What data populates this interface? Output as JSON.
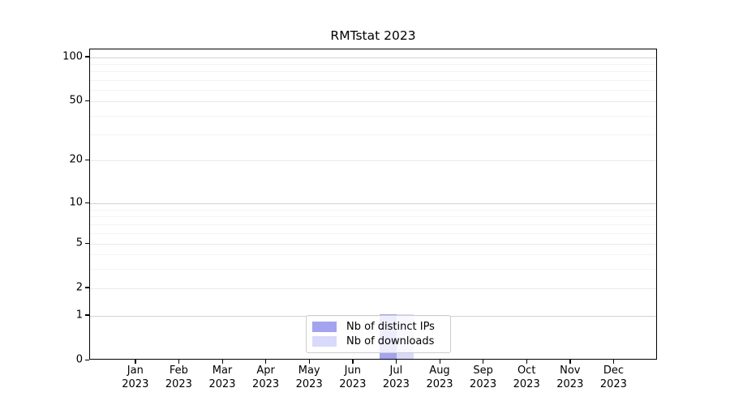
{
  "chart_data": {
    "type": "bar",
    "title": "RMTstat 2023",
    "x_months": [
      "Jan",
      "Feb",
      "Mar",
      "Apr",
      "May",
      "Jun",
      "Jul",
      "Aug",
      "Sep",
      "Oct",
      "Nov",
      "Dec"
    ],
    "x_year": "2023",
    "y_ticks": [
      "0",
      "1",
      "2",
      "5",
      "10",
      "20",
      "50",
      "100"
    ],
    "y_scale": "symlog",
    "ylim": [
      0,
      100
    ],
    "grid": true,
    "legend_position": "lower center",
    "series": [
      {
        "name": "Nb of distinct IPs",
        "color": "#a3a3f0",
        "values": [
          0,
          0,
          0,
          0,
          0,
          0,
          1,
          0,
          0,
          0,
          0,
          0
        ]
      },
      {
        "name": "Nb of downloads",
        "color": "#d9d9fb",
        "values": [
          0,
          0,
          0,
          0,
          0,
          0,
          1,
          0,
          0,
          0,
          0,
          0
        ]
      }
    ]
  }
}
